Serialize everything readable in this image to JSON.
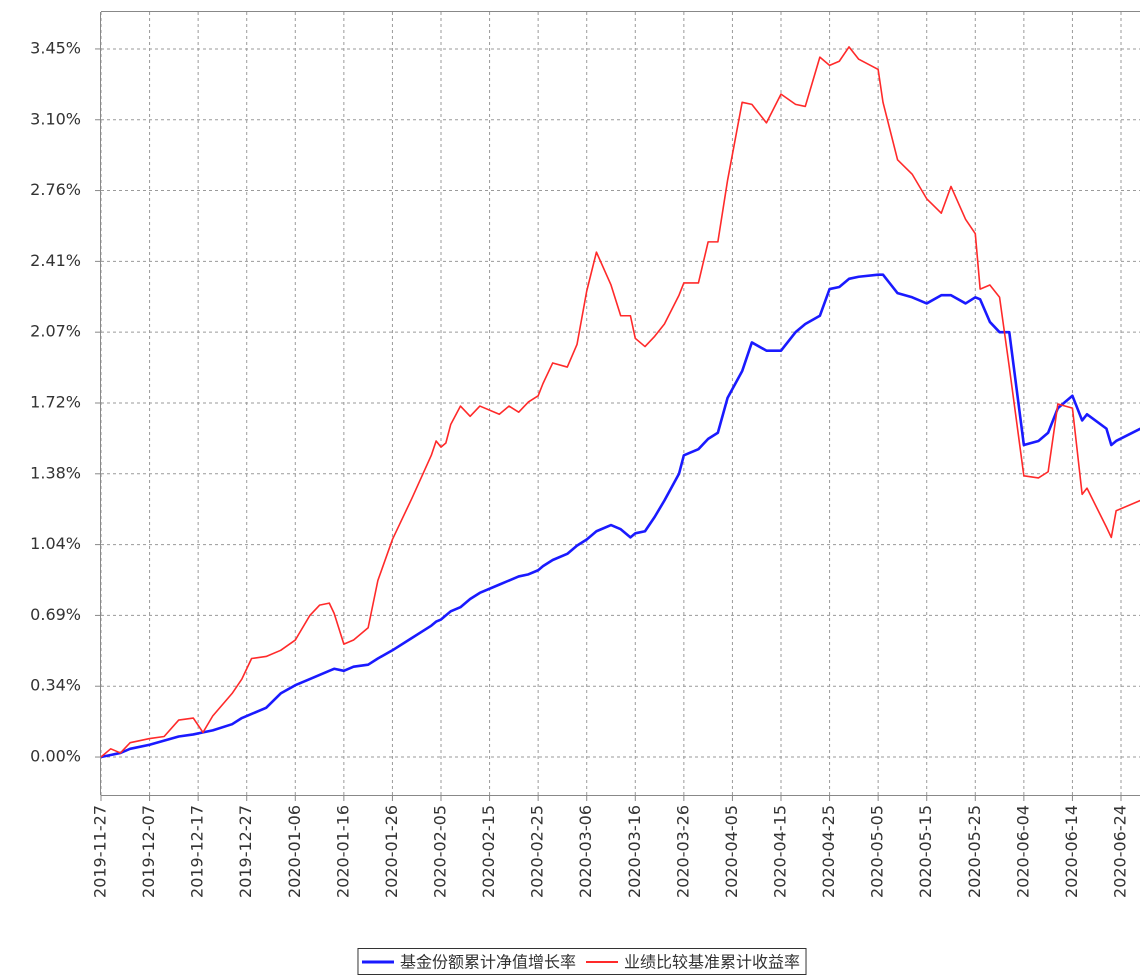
{
  "chart_data": {
    "type": "line",
    "x": [
      "2019-11-27",
      "2019-11-29",
      "2019-12-01",
      "2019-12-03",
      "2019-12-07",
      "2019-12-10",
      "2019-12-13",
      "2019-12-16",
      "2019-12-18",
      "2019-12-20",
      "2019-12-24",
      "2019-12-26",
      "2019-12-28",
      "2019-12-31",
      "2020-01-03",
      "2020-01-06",
      "2020-01-09",
      "2020-01-11",
      "2020-01-13",
      "2020-01-14",
      "2020-01-16",
      "2020-01-18",
      "2020-01-21",
      "2020-01-23",
      "2020-01-26",
      "2020-01-30",
      "2020-02-03",
      "2020-02-04",
      "2020-02-05",
      "2020-02-06",
      "2020-02-07",
      "2020-02-09",
      "2020-02-11",
      "2020-02-13",
      "2020-02-17",
      "2020-02-19",
      "2020-02-21",
      "2020-02-23",
      "2020-02-25",
      "2020-02-26",
      "2020-02-28",
      "2020-03-02",
      "2020-03-04",
      "2020-03-06",
      "2020-03-08",
      "2020-03-11",
      "2020-03-13",
      "2020-03-15",
      "2020-03-16",
      "2020-03-18",
      "2020-03-20",
      "2020-03-22",
      "2020-03-25",
      "2020-03-26",
      "2020-03-29",
      "2020-03-31",
      "2020-04-02",
      "2020-04-04",
      "2020-04-07",
      "2020-04-09",
      "2020-04-12",
      "2020-04-15",
      "2020-04-18",
      "2020-04-20",
      "2020-04-23",
      "2020-04-25",
      "2020-04-27",
      "2020-04-29",
      "2020-05-01",
      "2020-05-05",
      "2020-05-06",
      "2020-05-09",
      "2020-05-12",
      "2020-05-15",
      "2020-05-18",
      "2020-05-20",
      "2020-05-23",
      "2020-05-25",
      "2020-05-26",
      "2020-05-28",
      "2020-05-30",
      "2020-06-01",
      "2020-06-04",
      "2020-06-07",
      "2020-06-09",
      "2020-06-11",
      "2020-06-14",
      "2020-06-16",
      "2020-06-17",
      "2020-06-21",
      "2020-06-22",
      "2020-06-23",
      "2020-06-28"
    ],
    "series": [
      {
        "name": "基金份额累计净值增长率",
        "color": "#1a1aff",
        "values": [
          0,
          0.01,
          0.02,
          0.04,
          0.06,
          0.08,
          0.1,
          0.11,
          0.12,
          0.13,
          0.16,
          0.19,
          0.21,
          0.24,
          0.31,
          0.35,
          0.38,
          0.4,
          0.42,
          0.43,
          0.42,
          0.44,
          0.45,
          0.48,
          0.52,
          0.58,
          0.64,
          0.66,
          0.67,
          0.69,
          0.71,
          0.73,
          0.77,
          0.8,
          0.84,
          0.86,
          0.88,
          0.89,
          0.91,
          0.93,
          0.96,
          0.99,
          1.03,
          1.06,
          1.1,
          1.13,
          1.11,
          1.07,
          1.09,
          1.1,
          1.17,
          1.25,
          1.38,
          1.47,
          1.5,
          1.55,
          1.58,
          1.75,
          1.88,
          2.02,
          1.98,
          1.98,
          2.07,
          2.11,
          2.15,
          2.28,
          2.29,
          2.33,
          2.34,
          2.35,
          2.35,
          2.26,
          2.24,
          2.21,
          2.25,
          2.25,
          2.21,
          2.24,
          2.23,
          2.12,
          2.07,
          2.07,
          1.52,
          1.54,
          1.58,
          1.7,
          1.76,
          1.64,
          1.67,
          1.6,
          1.52,
          1.54,
          1.6
        ]
      },
      {
        "name": "业绩比较基准累计收益率",
        "color": "#ff2a2a",
        "values": [
          0,
          0.04,
          0.02,
          0.07,
          0.09,
          0.1,
          0.18,
          0.19,
          0.12,
          0.2,
          0.31,
          0.38,
          0.48,
          0.49,
          0.52,
          0.57,
          0.69,
          0.74,
          0.75,
          0.7,
          0.55,
          0.57,
          0.63,
          0.86,
          1.06,
          1.26,
          1.47,
          1.54,
          1.51,
          1.53,
          1.62,
          1.71,
          1.66,
          1.71,
          1.67,
          1.71,
          1.68,
          1.73,
          1.76,
          1.82,
          1.92,
          1.9,
          2.01,
          2.27,
          2.46,
          2.3,
          2.15,
          2.15,
          2.04,
          2.0,
          2.05,
          2.11,
          2.25,
          2.31,
          2.31,
          2.51,
          2.51,
          2.81,
          3.19,
          3.18,
          3.09,
          3.23,
          3.18,
          3.17,
          3.41,
          3.37,
          3.39,
          3.46,
          3.4,
          3.35,
          3.19,
          2.91,
          2.84,
          2.72,
          2.65,
          2.78,
          2.62,
          2.55,
          2.28,
          2.3,
          2.24,
          1.9,
          1.37,
          1.36,
          1.39,
          1.72,
          1.7,
          1.28,
          1.31,
          1.12,
          1.07,
          1.2,
          1.25
        ]
      }
    ],
    "xlim": [
      "2019-11-27",
      "2020-06-28"
    ],
    "xticks": [
      "2019-11-27",
      "2019-12-07",
      "2019-12-17",
      "2019-12-27",
      "2020-01-06",
      "2020-01-16",
      "2020-01-26",
      "2020-02-05",
      "2020-02-15",
      "2020-02-25",
      "2020-03-06",
      "2020-03-16",
      "2020-03-26",
      "2020-04-05",
      "2020-04-15",
      "2020-04-25",
      "2020-05-05",
      "2020-05-15",
      "2020-05-25",
      "2020-06-04",
      "2020-06-14",
      "2020-06-24"
    ],
    "ylim": [
      -0.185,
      3.63
    ],
    "yticks": [
      {
        "value": 0,
        "label": "0.00%"
      },
      {
        "value": 0.345,
        "label": "0.34%"
      },
      {
        "value": 0.69,
        "label": "0.69%"
      },
      {
        "value": 1.035,
        "label": "1.04%"
      },
      {
        "value": 1.38,
        "label": "1.38%"
      },
      {
        "value": 1.725,
        "label": "1.72%"
      },
      {
        "value": 2.07,
        "label": "2.07%"
      },
      {
        "value": 2.415,
        "label": "2.41%"
      },
      {
        "value": 2.76,
        "label": "2.76%"
      },
      {
        "value": 3.105,
        "label": "3.10%"
      },
      {
        "value": 3.45,
        "label": "3.45%"
      }
    ],
    "grid": true,
    "legend": "bottom"
  }
}
